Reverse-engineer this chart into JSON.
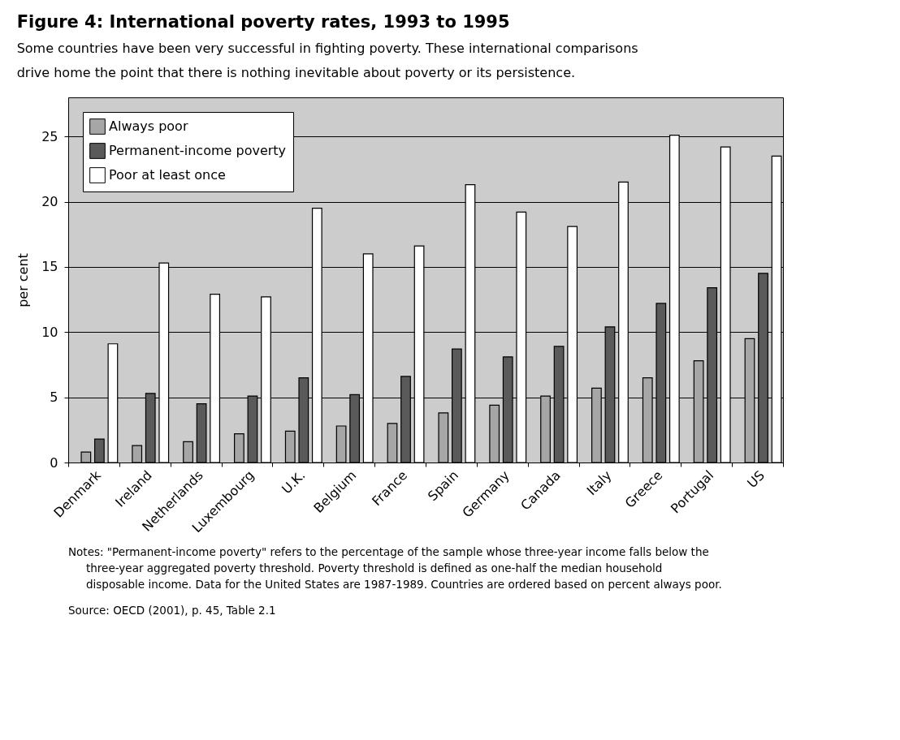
{
  "chart_data": {
    "type": "bar",
    "title": "Figure 4: International poverty rates, 1993 to 1995",
    "subtitle": "Some countries have been very successful in fighting poverty. These international comparisons drive home the point that there is nothing inevitable about poverty or its persistence.",
    "ylabel": "per cent",
    "categories": [
      "Denmark",
      "Ireland",
      "Netherlands",
      "Luxembourg",
      "U.K.",
      "Belgium",
      "France",
      "Spain",
      "Germany",
      "Canada",
      "Italy",
      "Greece",
      "Portugal",
      "US"
    ],
    "series": [
      {
        "name": "Always poor",
        "color": "#a6a6a6",
        "values": [
          0.8,
          1.3,
          1.6,
          2.2,
          2.4,
          2.8,
          3.0,
          3.8,
          4.4,
          5.1,
          5.7,
          6.5,
          7.8,
          9.5
        ]
      },
      {
        "name": "Permanent-income poverty",
        "color": "#5a5a5a",
        "values": [
          1.8,
          5.3,
          4.5,
          5.1,
          6.5,
          5.2,
          6.6,
          8.7,
          8.1,
          8.9,
          10.4,
          12.2,
          13.4,
          14.5
        ]
      },
      {
        "name": "Poor at least once",
        "color": "#ffffff",
        "values": [
          9.1,
          15.3,
          12.9,
          12.7,
          19.5,
          16.0,
          16.6,
          21.3,
          19.2,
          18.1,
          21.5,
          25.1,
          24.2,
          23.5
        ]
      }
    ],
    "ylim": [
      0,
      28
    ],
    "yticks": [
      0,
      5,
      10,
      15,
      20,
      25
    ],
    "grid": "y",
    "legend": "top left",
    "annotations": [
      "Notes: \"Permanent-income poverty\" refers to the percentage of the sample whose three-year income falls below the three-year aggregated poverty threshold. Poverty threshold is defined as one-half the median household disposable income. Data for the United States are 1987-1989. Countries are ordered based on percent always poor.",
      "Source: OECD (2001), p. 45, Table 2.1"
    ]
  }
}
